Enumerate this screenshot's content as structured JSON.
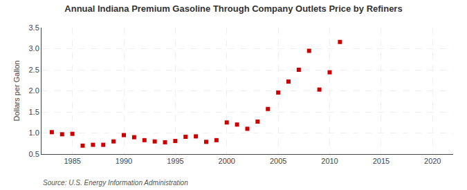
{
  "chart_data": {
    "type": "scatter",
    "title": "Annual Indiana Premium Gasoline Through Company Outlets Price by Refiners",
    "y_label": "Dollars per Gallon",
    "annotations": [
      "Source: U.S. Energy Information Administration"
    ],
    "x": [
      1983,
      1984,
      1985,
      1986,
      1987,
      1988,
      1989,
      1990,
      1991,
      1992,
      1993,
      1994,
      1995,
      1996,
      1997,
      1998,
      1999,
      2000,
      2001,
      2002,
      2003,
      2004,
      2005,
      2006,
      2007,
      2008,
      2009,
      2010,
      2011
    ],
    "values": [
      1.02,
      0.97,
      0.98,
      0.7,
      0.72,
      0.72,
      0.8,
      0.95,
      0.9,
      0.83,
      0.8,
      0.78,
      0.81,
      0.91,
      0.92,
      0.79,
      0.83,
      1.25,
      1.2,
      1.1,
      1.27,
      1.57,
      1.96,
      2.22,
      2.5,
      2.95,
      2.03,
      2.44,
      3.16
    ],
    "color": "#cc0000",
    "marker": "square",
    "xlim": [
      1982,
      2022
    ],
    "ylim": [
      0.5,
      3.5
    ],
    "xticks": [
      1985,
      1990,
      1995,
      2000,
      2005,
      2010,
      2015,
      2020
    ],
    "yticks": [
      0.5,
      {
        "value": 1.0,
        "label": "1.0"
      },
      1.5,
      {
        "value": 2.0,
        "label": "2.0"
      },
      2.5,
      {
        "value": 3.0,
        "label": "3.0"
      },
      3.5
    ],
    "grid": true
  }
}
